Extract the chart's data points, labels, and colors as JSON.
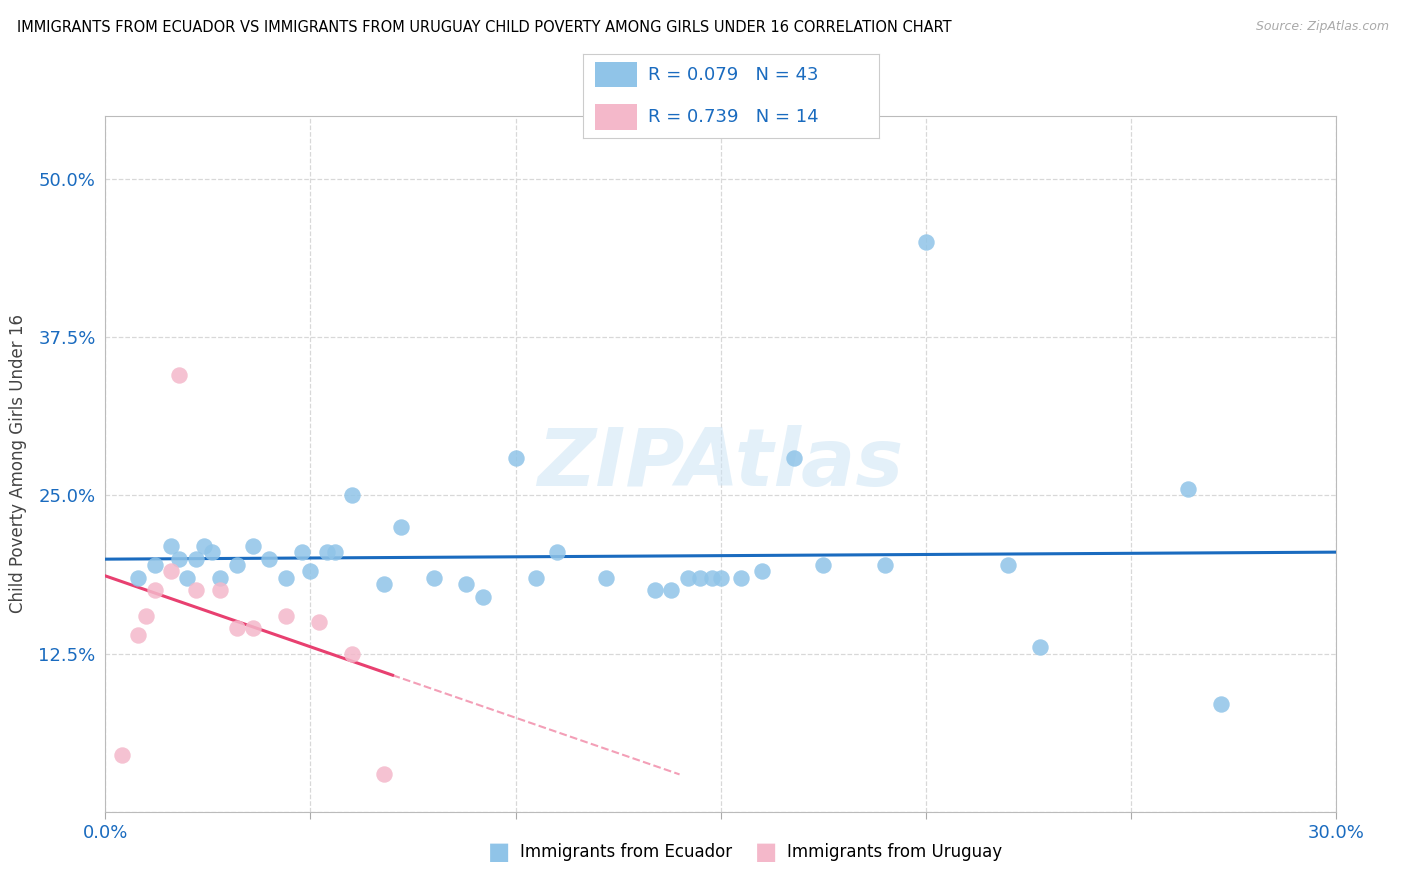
{
  "title": "IMMIGRANTS FROM ECUADOR VS IMMIGRANTS FROM URUGUAY CHILD POVERTY AMONG GIRLS UNDER 16 CORRELATION CHART",
  "source": "Source: ZipAtlas.com",
  "ylabel": "Child Poverty Among Girls Under 16",
  "xlim": [
    0.0,
    0.3
  ],
  "ylim": [
    0.0,
    0.55
  ],
  "xticks": [
    0.0,
    0.05,
    0.1,
    0.15,
    0.2,
    0.25,
    0.3
  ],
  "xticklabels": [
    "0.0%",
    "",
    "",
    "",
    "",
    "",
    "30.0%"
  ],
  "yticks": [
    0.0,
    0.125,
    0.25,
    0.375,
    0.5
  ],
  "yticklabels": [
    "",
    "12.5%",
    "25.0%",
    "37.5%",
    "50.0%"
  ],
  "R_ecuador": 0.079,
  "N_ecuador": 43,
  "R_uruguay": 0.739,
  "N_uruguay": 14,
  "ecuador_color": "#90c4e8",
  "uruguay_color": "#f4b8ca",
  "line_color_ecuador": "#1a6bbf",
  "line_color_uruguay": "#e84070",
  "legend_text_color": "#1a6bbf",
  "ecuador_scatter_x": [
    0.008,
    0.012,
    0.016,
    0.018,
    0.02,
    0.022,
    0.024,
    0.026,
    0.028,
    0.032,
    0.036,
    0.04,
    0.044,
    0.048,
    0.05,
    0.054,
    0.056,
    0.06,
    0.068,
    0.072,
    0.08,
    0.088,
    0.092,
    0.1,
    0.105,
    0.11,
    0.122,
    0.134,
    0.138,
    0.142,
    0.145,
    0.148,
    0.15,
    0.155,
    0.16,
    0.168,
    0.175,
    0.19,
    0.2,
    0.22,
    0.228,
    0.264,
    0.272
  ],
  "ecuador_scatter_y": [
    0.185,
    0.195,
    0.21,
    0.2,
    0.185,
    0.2,
    0.21,
    0.205,
    0.185,
    0.195,
    0.21,
    0.2,
    0.185,
    0.205,
    0.19,
    0.205,
    0.205,
    0.25,
    0.18,
    0.225,
    0.185,
    0.18,
    0.17,
    0.28,
    0.185,
    0.205,
    0.185,
    0.175,
    0.175,
    0.185,
    0.185,
    0.185,
    0.185,
    0.185,
    0.19,
    0.28,
    0.195,
    0.195,
    0.45,
    0.195,
    0.13,
    0.255,
    0.085
  ],
  "uruguay_scatter_x": [
    0.004,
    0.008,
    0.01,
    0.012,
    0.016,
    0.018,
    0.022,
    0.028,
    0.032,
    0.036,
    0.044,
    0.052,
    0.06,
    0.068
  ],
  "uruguay_scatter_y": [
    0.045,
    0.14,
    0.155,
    0.175,
    0.19,
    0.345,
    0.175,
    0.175,
    0.145,
    0.145,
    0.155,
    0.15,
    0.125,
    0.03
  ],
  "watermark": "ZIPAtlas",
  "background_color": "#ffffff",
  "grid_color": "#d8d8d8"
}
